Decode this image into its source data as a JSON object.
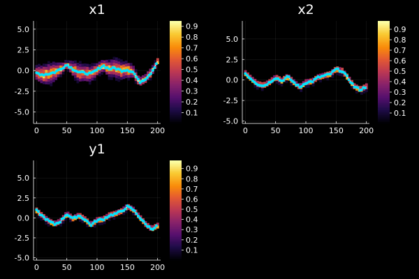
{
  "figure": {
    "background": "#000000",
    "colormap": "inferno",
    "marker_color": "#00e5ff",
    "line_color": "#ffffff"
  },
  "chart_data": [
    {
      "type": "heatmap",
      "title": "x1",
      "xlim": [
        -5,
        205
      ],
      "ylim": [
        -6.4,
        6.0
      ],
      "xticks": [
        "0",
        "50",
        "100",
        "150",
        "200"
      ],
      "yticks": [
        "-5.0",
        "-2.5",
        "0.0",
        "2.5",
        "5.0"
      ],
      "grid": true,
      "colorbar": {
        "range": [
          0.0,
          0.95
        ],
        "ticks": [
          "0.1",
          "0.2",
          "0.3",
          "0.4",
          "0.5",
          "0.6",
          "0.7",
          "0.8",
          "0.9"
        ]
      },
      "x": [
        0,
        10,
        20,
        30,
        40,
        50,
        60,
        70,
        80,
        90,
        100,
        110,
        120,
        130,
        140,
        150,
        160,
        170,
        180,
        190,
        200
      ],
      "trajectory": [
        -0.3,
        -0.5,
        -0.4,
        -0.2,
        0.2,
        0.7,
        0.2,
        -0.2,
        -0.3,
        -0.4,
        0.1,
        0.6,
        0.2,
        0.3,
        0.0,
        0.1,
        -0.2,
        -1.4,
        -1.0,
        -0.2,
        1.1
      ],
      "spread": [
        0.6,
        0.8,
        0.9,
        0.8,
        0.5,
        0.3,
        0.6,
        0.8,
        0.7,
        0.7,
        0.5,
        0.5,
        0.7,
        0.8,
        0.8,
        0.7,
        0.5,
        0.4,
        0.4,
        0.4,
        0.3
      ]
    },
    {
      "type": "heatmap",
      "title": "x2",
      "xlim": [
        -5,
        205
      ],
      "ylim": [
        -5.3,
        7.2
      ],
      "xticks": [
        "0",
        "50",
        "100",
        "150",
        "200"
      ],
      "yticks": [
        "-5.0",
        "-2.5",
        "0.0",
        "2.5",
        "5.0"
      ],
      "grid": true,
      "colorbar": {
        "range": [
          0.0,
          0.98
        ],
        "ticks": [
          "0.1",
          "0.2",
          "0.3",
          "0.4",
          "0.5",
          "0.6",
          "0.7",
          "0.8",
          "0.9"
        ]
      },
      "x": [
        0,
        10,
        20,
        30,
        40,
        50,
        60,
        70,
        80,
        90,
        100,
        110,
        120,
        130,
        140,
        150,
        160,
        170,
        180,
        190,
        200
      ],
      "trajectory": [
        0.8,
        0.1,
        -0.5,
        -0.7,
        -0.3,
        0.3,
        -0.1,
        0.4,
        -0.3,
        -0.9,
        -0.3,
        -0.2,
        0.3,
        0.5,
        0.7,
        1.3,
        1.1,
        0.2,
        -0.8,
        -1.2,
        -0.8
      ],
      "spread": [
        0.3,
        0.3,
        0.3,
        0.3,
        0.3,
        0.3,
        0.3,
        0.3,
        0.3,
        0.3,
        0.3,
        0.3,
        0.3,
        0.3,
        0.3,
        0.3,
        0.3,
        0.3,
        0.3,
        0.3,
        0.3
      ]
    },
    {
      "type": "heatmap",
      "title": "y1",
      "xlim": [
        -5,
        205
      ],
      "ylim": [
        -5.3,
        7.2
      ],
      "xticks": [
        "0",
        "50",
        "100",
        "150",
        "200"
      ],
      "yticks": [
        "-5.0",
        "-2.5",
        "0.0",
        "2.5",
        "5.0"
      ],
      "grid": true,
      "colorbar": {
        "range": [
          0.0,
          0.98
        ],
        "ticks": [
          "0.1",
          "0.2",
          "0.3",
          "0.4",
          "0.5",
          "0.6",
          "0.7",
          "0.8",
          "0.9"
        ]
      },
      "x": [
        0,
        10,
        20,
        30,
        40,
        50,
        60,
        70,
        80,
        90,
        100,
        110,
        120,
        130,
        140,
        150,
        160,
        170,
        180,
        190,
        200
      ],
      "trajectory": [
        0.9,
        0.2,
        -0.4,
        -0.8,
        -0.4,
        0.5,
        -0.1,
        0.3,
        -0.2,
        -0.9,
        -0.3,
        -0.2,
        0.3,
        0.5,
        0.8,
        1.4,
        1.0,
        0.1,
        -0.8,
        -1.4,
        -1.0
      ],
      "spread": [
        0.3,
        0.3,
        0.3,
        0.3,
        0.3,
        0.3,
        0.3,
        0.3,
        0.3,
        0.3,
        0.3,
        0.3,
        0.3,
        0.3,
        0.3,
        0.3,
        0.3,
        0.3,
        0.3,
        0.3,
        0.3
      ]
    }
  ]
}
